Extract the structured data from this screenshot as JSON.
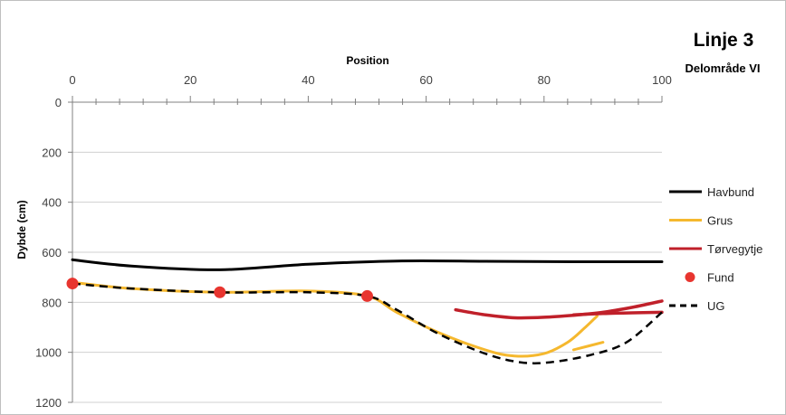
{
  "chart_data": {
    "type": "line",
    "title": "Linje 3",
    "subtitle": "Delområde VI",
    "xlabel": "Position",
    "ylabel": "Dybde (cm)",
    "xlim": [
      0,
      100
    ],
    "ylim": [
      0,
      1200
    ],
    "y_inverted": true,
    "x_axis_position": "top",
    "xticks": [
      0,
      20,
      40,
      60,
      80,
      100
    ],
    "yticks": [
      0,
      200,
      400,
      600,
      800,
      1000,
      1200
    ],
    "grid": "horizontal",
    "legend_position": "right",
    "series": [
      {
        "name": "Havbund",
        "kind": "line",
        "color": "#000000",
        "points": [
          [
            0,
            630
          ],
          [
            10,
            655
          ],
          [
            25,
            670
          ],
          [
            40,
            648
          ],
          [
            55,
            635
          ],
          [
            70,
            636
          ],
          [
            85,
            638
          ],
          [
            100,
            638
          ]
        ]
      },
      {
        "name": "Grus",
        "kind": "line",
        "color": "#f5b82e",
        "points": [
          [
            0,
            720
          ],
          [
            10,
            745
          ],
          [
            25,
            760
          ],
          [
            40,
            755
          ],
          [
            50,
            775
          ],
          [
            55,
            840
          ],
          [
            62,
            920
          ],
          [
            70,
            990
          ],
          [
            75,
            1015
          ],
          [
            80,
            1005
          ],
          [
            84,
            960
          ],
          [
            87,
            900
          ],
          [
            89,
            855
          ]
        ]
      },
      {
        "name": "Grus",
        "kind": "line",
        "color": "#f5b82e",
        "points": [
          [
            85,
            990
          ],
          [
            90,
            960
          ]
        ]
      },
      {
        "name": "Tørvegytje",
        "kind": "line",
        "color": "#c0202a",
        "points": [
          [
            65,
            830
          ],
          [
            70,
            850
          ],
          [
            75,
            862
          ],
          [
            80,
            860
          ],
          [
            85,
            852
          ],
          [
            90,
            840
          ],
          [
            95,
            820
          ],
          [
            100,
            795
          ]
        ]
      },
      {
        "name": "Tørvegytje",
        "kind": "line",
        "color": "#c0202a",
        "points": [
          [
            85,
            850
          ],
          [
            90,
            845
          ],
          [
            95,
            842
          ],
          [
            100,
            840
          ]
        ]
      },
      {
        "name": "UG",
        "kind": "dashed-line",
        "color": "#000000",
        "points": [
          [
            0,
            725
          ],
          [
            10,
            745
          ],
          [
            25,
            760
          ],
          [
            40,
            760
          ],
          [
            50,
            775
          ],
          [
            55,
            830
          ],
          [
            62,
            925
          ],
          [
            70,
            1005
          ],
          [
            76,
            1040
          ],
          [
            81,
            1040
          ],
          [
            88,
            1010
          ],
          [
            94,
            960
          ],
          [
            100,
            840
          ]
        ]
      },
      {
        "name": "Fund",
        "kind": "markers",
        "color": "#e8352f",
        "points": [
          [
            0,
            725
          ],
          [
            25,
            760
          ],
          [
            50,
            775
          ]
        ]
      }
    ],
    "legend": [
      {
        "label": "Havbund",
        "kind": "line",
        "color": "#000000"
      },
      {
        "label": "Grus",
        "kind": "line",
        "color": "#f5b82e"
      },
      {
        "label": "Tørvegytje",
        "kind": "line",
        "color": "#c0202a"
      },
      {
        "label": "Fund",
        "kind": "marker",
        "color": "#e8352f"
      },
      {
        "label": "UG",
        "kind": "dashed-line",
        "color": "#000000"
      }
    ]
  }
}
